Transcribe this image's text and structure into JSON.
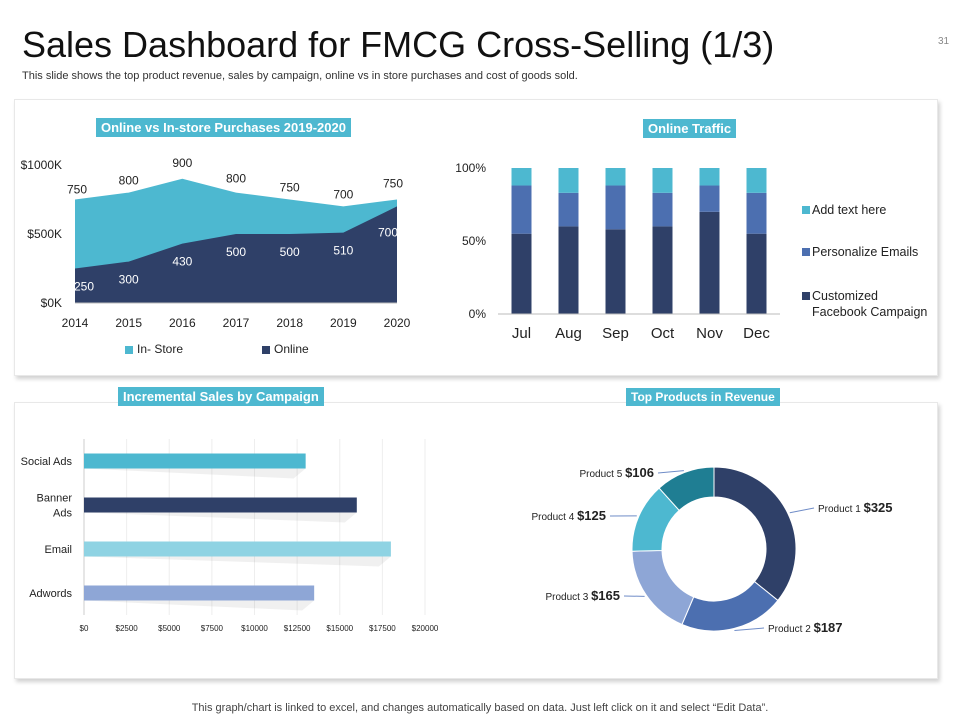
{
  "slide": {
    "title": "Sales Dashboard for FMCG Cross-Selling (1/3)",
    "subtitle": "This slide shows the top product revenue, sales by campaign, online vs in store purchases and cost of goods sold.",
    "page_number": "31",
    "footer": "This graph/chart is linked to excel,  and changes automatically based on data. Just left click on it and select “Edit Data”."
  },
  "colors": {
    "accent": "#4db8d0",
    "navy": "#2f4068",
    "blue": "#4c6fb0",
    "light_blue": "#8ea6d6"
  },
  "chart_data": [
    {
      "type": "area",
      "title": "Online vs In-store Purchases 2019-2020",
      "x": [
        "2014",
        "2015",
        "2016",
        "2017",
        "2018",
        "2019",
        "2020"
      ],
      "y_ticks": [
        "$0K",
        "$500K",
        "$1000K"
      ],
      "ylim": [
        0,
        1000
      ],
      "series": [
        {
          "name": "In- Store",
          "values": [
            750,
            800,
            900,
            800,
            750,
            700,
            750
          ],
          "color": "#4db8d0"
        },
        {
          "name": "Online",
          "values": [
            250,
            300,
            430,
            500,
            500,
            510,
            700
          ],
          "color": "#2f4068"
        }
      ],
      "legend": "bottom"
    },
    {
      "type": "bar",
      "stacked": true,
      "percent": true,
      "title": "Online Traffic",
      "categories": [
        "Jul",
        "Aug",
        "Sep",
        "Oct",
        "Nov",
        "Dec"
      ],
      "y_ticks": [
        "0%",
        "50%",
        "100%"
      ],
      "series": [
        {
          "name": "Customized Facebook Campaign",
          "values": [
            55,
            60,
            58,
            60,
            70,
            55
          ],
          "color": "#2f4068"
        },
        {
          "name": "Personalize Emails",
          "values": [
            33,
            23,
            30,
            23,
            18,
            28
          ],
          "color": "#4c6fb0"
        },
        {
          "name": "Add text here",
          "values": [
            12,
            17,
            12,
            17,
            12,
            17
          ],
          "color": "#4db8d0"
        }
      ],
      "legend": "right"
    },
    {
      "type": "bar",
      "orientation": "horizontal",
      "title": "Incremental Sales by Campaign",
      "categories": [
        "Social Ads",
        "Banner Ads",
        "Email",
        "Adwords"
      ],
      "category_lines": [
        [
          "Social Ads"
        ],
        [
          "Banner",
          "Ads"
        ],
        [
          "Email"
        ],
        [
          "Adwords"
        ]
      ],
      "values": [
        13000,
        16000,
        18000,
        13500
      ],
      "colors": [
        "#4db8d0",
        "#2f4068",
        "#8fd3e3",
        "#8ea6d6"
      ],
      "x_ticks": [
        "$0",
        "$2500",
        "$5000",
        "$7500",
        "$10000",
        "$12500",
        "$15000",
        "$17500",
        "$20000"
      ],
      "xlim": [
        0,
        20000
      ]
    },
    {
      "type": "pie",
      "donut": true,
      "title": "Top Products in Revenue",
      "slices": [
        {
          "name": "Product 1",
          "value": 325,
          "label": "$325",
          "color": "#2f4068"
        },
        {
          "name": "Product 2",
          "value": 187,
          "label": "$187",
          "color": "#4c6fb0"
        },
        {
          "name": "Product 3",
          "value": 165,
          "label": "$165",
          "color": "#8ea6d6"
        },
        {
          "name": "Product 4",
          "value": 125,
          "label": "$125",
          "color": "#4db8d0"
        },
        {
          "name": "Product 5",
          "value": 106,
          "label": "$106",
          "color": "#1f7e93"
        }
      ]
    }
  ]
}
